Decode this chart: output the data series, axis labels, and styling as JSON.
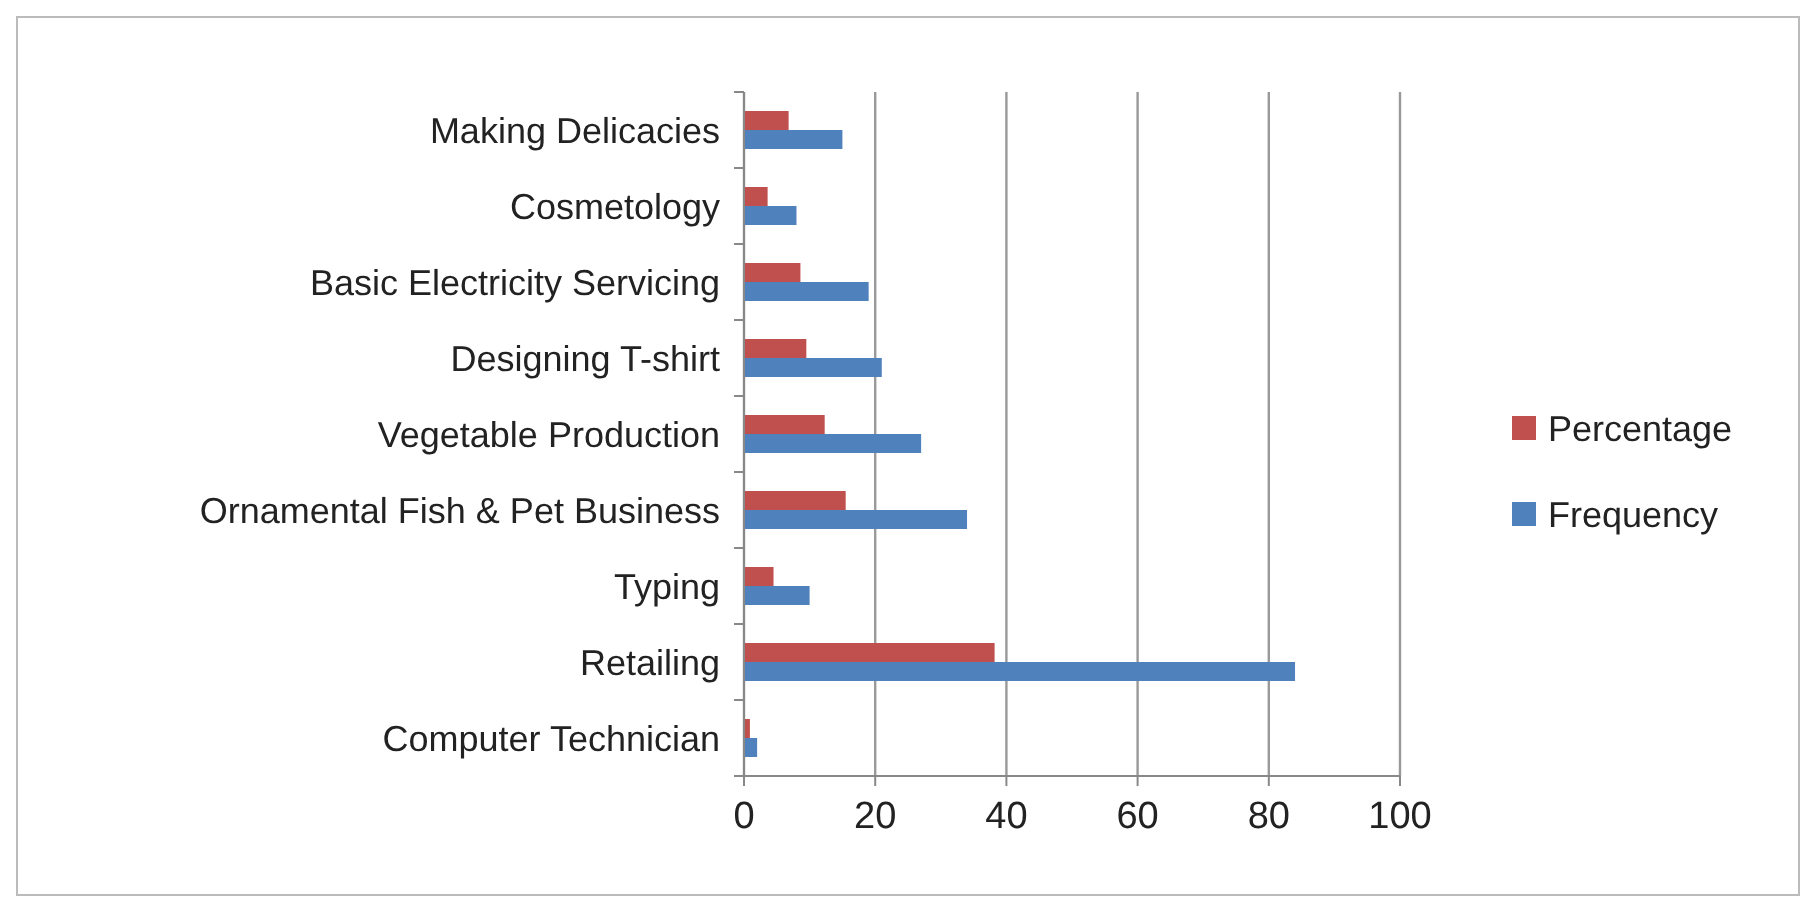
{
  "chart_data": {
    "type": "bar",
    "orientation": "horizontal",
    "categories": [
      "Making Delicacies",
      "Cosmetology",
      "Basic Electricity Servicing",
      "Designing T-shirt",
      "Vegetable Production",
      "Ornamental Fish & Pet Business",
      "Typing",
      "Retailing",
      "Computer Technician"
    ],
    "series": [
      {
        "name": "Percentage",
        "color": "#c0504d",
        "values": [
          6.8,
          3.6,
          8.6,
          9.5,
          12.3,
          15.5,
          4.5,
          38.2,
          0.9
        ]
      },
      {
        "name": "Frequency",
        "color": "#4f81bd",
        "values": [
          15,
          8,
          19,
          21,
          27,
          34,
          10,
          84,
          2
        ]
      }
    ],
    "xlim": [
      0,
      100
    ],
    "xticks": [
      0,
      20,
      40,
      60,
      80,
      100
    ],
    "grid": "x",
    "legend": "right"
  }
}
